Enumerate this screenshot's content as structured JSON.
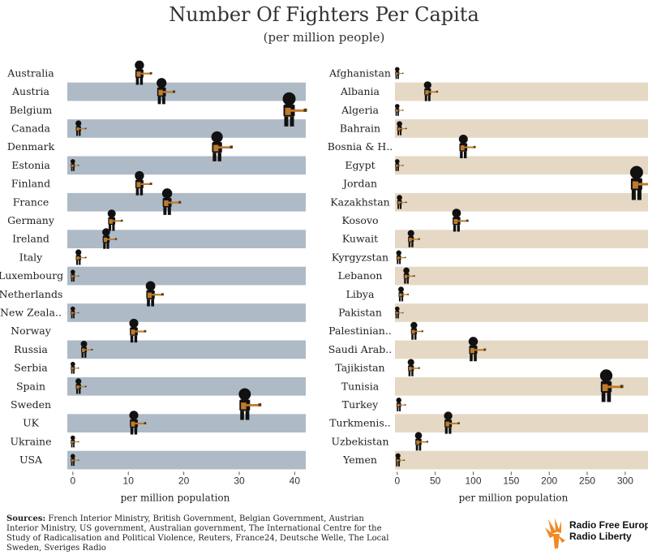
{
  "title": "Number Of Fighters Per Capita",
  "subtitle": "(per million people)",
  "sources_label": "Sources:",
  "sources_text": "French Interior Ministry, British Government, Belgian Government, Austrian Interior Ministry, US government, Australian government, The International Centre for the Study of Radicalisation and Political Violence, Reuters, France24, Deutsche Welle, The Local Sweden, Sveriges Radio",
  "logo": {
    "line1": "Radio Free Europe",
    "line2": "Radio Liberty"
  },
  "colors": {
    "left_band": "#aebac6",
    "right_band": "#e5d9c5",
    "figure": "#111111",
    "gun": "#c07a2a",
    "logo_orange": "#f08a24"
  },
  "chart_data": [
    {
      "type": "pictogram-bar",
      "xlabel": "per million population",
      "xlim": [
        -1,
        42
      ],
      "ticks": [
        0,
        10,
        20,
        30,
        40
      ],
      "categories": [
        "Australia",
        "Austria",
        "Belgium",
        "Canada",
        "Denmark",
        "Estonia",
        "Finland",
        "France",
        "Germany",
        "Ireland",
        "Italy",
        "Luxembourg",
        "Netherlands",
        "New Zeala..",
        "Norway",
        "Russia",
        "Serbia",
        "Spain",
        "Sweden",
        "UK",
        "Ukraine",
        "USA"
      ],
      "values": [
        12,
        16,
        39,
        1,
        26,
        0,
        12,
        17,
        7,
        6,
        1,
        0,
        14,
        0,
        11,
        2,
        0,
        1,
        31,
        11,
        0,
        0
      ]
    },
    {
      "type": "pictogram-bar",
      "xlabel": "per million population",
      "xlim": [
        -3,
        330
      ],
      "ticks": [
        0,
        50,
        100,
        150,
        200,
        250,
        300
      ],
      "categories": [
        "Afghanistan",
        "Albania",
        "Algeria",
        "Bahrain",
        "Bosnia & H..",
        "Egypt",
        "Jordan",
        "Kazakhstan",
        "Kosovo",
        "Kuwait",
        "Kyrgyzstan",
        "Lebanon",
        "Libya",
        "Pakistan",
        "Palestinian..",
        "Saudi Arab..",
        "Tajikistan",
        "Tunisia",
        "Turkey",
        "Turkmenis..",
        "Uzbekistan",
        "Yemen"
      ],
      "values": [
        0,
        40,
        0,
        3,
        87,
        0,
        315,
        3,
        78,
        18,
        2,
        12,
        5,
        0,
        22,
        100,
        18,
        275,
        2,
        67,
        28,
        1
      ]
    }
  ]
}
